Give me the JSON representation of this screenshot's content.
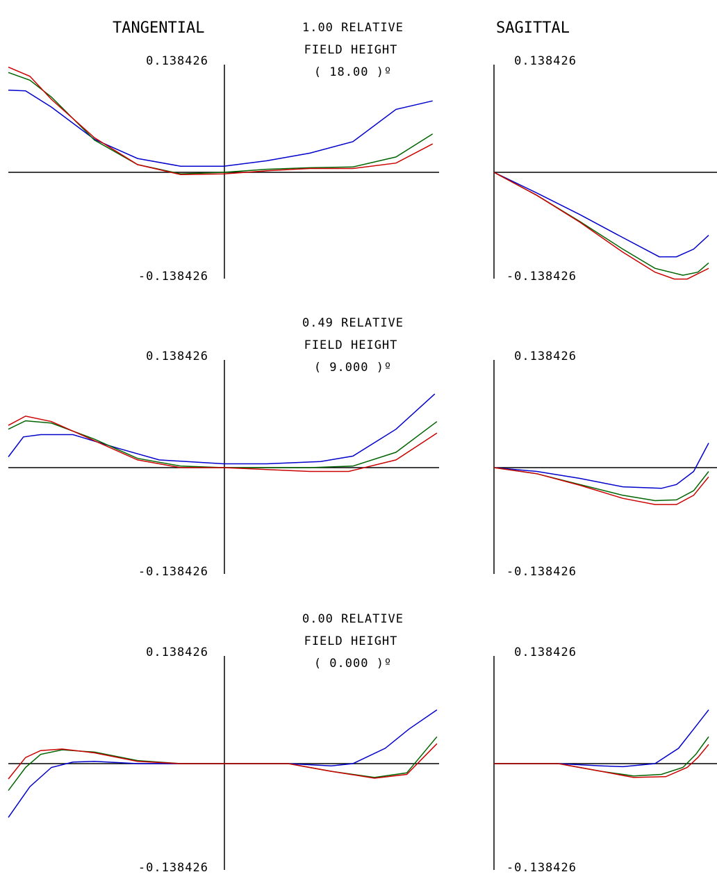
{
  "headers": {
    "tangential": "TANGENTIAL",
    "sagittal": "SAGITTAL"
  },
  "colors": {
    "blue": "#0000cc",
    "green": "#006400",
    "red": "#cc0000",
    "axis": "#000000"
  },
  "chart_data": [
    {
      "type": "line",
      "subplot": "tangential",
      "row": 0,
      "field_label": [
        "1.00  RELATIVE",
        "FIELD HEIGHT",
        "( 18.00 )º"
      ],
      "ylim_labels": [
        "0.138426",
        "-0.138426"
      ],
      "ylim": [
        -0.138426,
        0.138426
      ],
      "xlim": [
        -1,
        1
      ],
      "series": [
        {
          "color": "blue",
          "points": [
            [
              -1,
              0.107
            ],
            [
              -0.92,
              0.106
            ],
            [
              -0.8,
              0.085
            ],
            [
              -0.6,
              0.043
            ],
            [
              -0.4,
              0.018
            ],
            [
              -0.2,
              0.008
            ],
            [
              0,
              0.008
            ],
            [
              0.2,
              0.015
            ],
            [
              0.4,
              0.025
            ],
            [
              0.6,
              0.04
            ],
            [
              0.8,
              0.082
            ],
            [
              0.97,
              0.093
            ]
          ]
        },
        {
          "color": "green",
          "points": [
            [
              -1,
              0.13
            ],
            [
              -0.9,
              0.12
            ],
            [
              -0.8,
              0.098
            ],
            [
              -0.6,
              0.042
            ],
            [
              -0.4,
              0.01
            ],
            [
              -0.2,
              -0.002
            ],
            [
              0,
              0
            ],
            [
              0.2,
              0.004
            ],
            [
              0.4,
              0.006
            ],
            [
              0.6,
              0.007
            ],
            [
              0.8,
              0.02
            ],
            [
              0.97,
              0.05
            ]
          ]
        },
        {
          "color": "red",
          "points": [
            [
              -1,
              0.137
            ],
            [
              -0.9,
              0.125
            ],
            [
              -0.8,
              0.095
            ],
            [
              -0.6,
              0.045
            ],
            [
              -0.4,
              0.01
            ],
            [
              -0.2,
              -0.003
            ],
            [
              0,
              -0.002
            ],
            [
              0.2,
              0.002
            ],
            [
              0.4,
              0.005
            ],
            [
              0.6,
              0.005
            ],
            [
              0.8,
              0.012
            ],
            [
              0.97,
              0.037
            ]
          ]
        }
      ]
    },
    {
      "type": "line",
      "subplot": "sagittal",
      "row": 0,
      "ylim_labels": [
        "0.138426",
        "-0.138426"
      ],
      "ylim": [
        -0.138426,
        0.138426
      ],
      "xlim": [
        0,
        1
      ],
      "series": [
        {
          "color": "blue",
          "points": [
            [
              0,
              0
            ],
            [
              0.2,
              -0.027
            ],
            [
              0.4,
              -0.055
            ],
            [
              0.6,
              -0.085
            ],
            [
              0.77,
              -0.11
            ],
            [
              0.85,
              -0.11
            ],
            [
              0.93,
              -0.1
            ],
            [
              1,
              -0.082
            ]
          ]
        },
        {
          "color": "green",
          "points": [
            [
              0,
              0
            ],
            [
              0.2,
              -0.03
            ],
            [
              0.4,
              -0.064
            ],
            [
              0.6,
              -0.1
            ],
            [
              0.75,
              -0.125
            ],
            [
              0.88,
              -0.134
            ],
            [
              0.95,
              -0.13
            ],
            [
              1,
              -0.118
            ]
          ]
        },
        {
          "color": "red",
          "points": [
            [
              0,
              0
            ],
            [
              0.2,
              -0.03
            ],
            [
              0.4,
              -0.065
            ],
            [
              0.6,
              -0.104
            ],
            [
              0.75,
              -0.13
            ],
            [
              0.84,
              -0.139
            ],
            [
              0.9,
              -0.139
            ],
            [
              1,
              -0.125
            ]
          ]
        }
      ]
    },
    {
      "type": "line",
      "subplot": "tangential",
      "row": 1,
      "field_label": [
        "0.49  RELATIVE",
        "FIELD HEIGHT",
        "( 9.000 )º"
      ],
      "ylim_labels": [
        "0.138426",
        "-0.138426"
      ],
      "ylim": [
        -0.138426,
        0.138426
      ],
      "xlim": [
        -1,
        1
      ],
      "series": [
        {
          "color": "blue",
          "points": [
            [
              -1,
              0.014
            ],
            [
              -0.93,
              0.04
            ],
            [
              -0.85,
              0.043
            ],
            [
              -0.7,
              0.043
            ],
            [
              -0.5,
              0.026
            ],
            [
              -0.3,
              0.01
            ],
            [
              0,
              0.005
            ],
            [
              0.2,
              0.005
            ],
            [
              0.45,
              0.008
            ],
            [
              0.6,
              0.015
            ],
            [
              0.8,
              0.05
            ],
            [
              0.98,
              0.096
            ]
          ]
        },
        {
          "color": "green",
          "points": [
            [
              -1,
              0.05
            ],
            [
              -0.92,
              0.061
            ],
            [
              -0.8,
              0.058
            ],
            [
              -0.6,
              0.037
            ],
            [
              -0.4,
              0.012
            ],
            [
              -0.2,
              0.002
            ],
            [
              0,
              0
            ],
            [
              0.4,
              0
            ],
            [
              0.6,
              0.002
            ],
            [
              0.8,
              0.02
            ],
            [
              0.99,
              0.06
            ]
          ]
        },
        {
          "color": "red",
          "points": [
            [
              -1,
              0.055
            ],
            [
              -0.92,
              0.067
            ],
            [
              -0.8,
              0.06
            ],
            [
              -0.6,
              0.035
            ],
            [
              -0.4,
              0.01
            ],
            [
              -0.2,
              0
            ],
            [
              0,
              0
            ],
            [
              0.4,
              -0.005
            ],
            [
              0.58,
              -0.005
            ],
            [
              0.8,
              0.01
            ],
            [
              0.99,
              0.045
            ]
          ]
        }
      ]
    },
    {
      "type": "line",
      "subplot": "sagittal",
      "row": 1,
      "ylim_labels": [
        "0.138426",
        "-0.138426"
      ],
      "ylim": [
        -0.138426,
        0.138426
      ],
      "xlim": [
        0,
        1
      ],
      "series": [
        {
          "color": "blue",
          "points": [
            [
              0,
              0
            ],
            [
              0.2,
              -0.005
            ],
            [
              0.4,
              -0.014
            ],
            [
              0.6,
              -0.025
            ],
            [
              0.78,
              -0.027
            ],
            [
              0.85,
              -0.022
            ],
            [
              0.93,
              -0.005
            ],
            [
              1,
              0.032
            ]
          ]
        },
        {
          "color": "green",
          "points": [
            [
              0,
              0
            ],
            [
              0.2,
              -0.008
            ],
            [
              0.4,
              -0.022
            ],
            [
              0.6,
              -0.036
            ],
            [
              0.75,
              -0.043
            ],
            [
              0.85,
              -0.042
            ],
            [
              0.93,
              -0.03
            ],
            [
              1,
              -0.005
            ]
          ]
        },
        {
          "color": "red",
          "points": [
            [
              0,
              0
            ],
            [
              0.2,
              -0.008
            ],
            [
              0.4,
              -0.023
            ],
            [
              0.6,
              -0.04
            ],
            [
              0.75,
              -0.048
            ],
            [
              0.85,
              -0.048
            ],
            [
              0.93,
              -0.036
            ],
            [
              1,
              -0.012
            ]
          ]
        }
      ]
    },
    {
      "type": "line",
      "subplot": "tangential",
      "row": 2,
      "field_label": [
        "0.00  RELATIVE",
        "FIELD HEIGHT",
        "( 0.000 )º"
      ],
      "ylim_labels": [
        "0.138426",
        "-0.138426"
      ],
      "ylim": [
        -0.138426,
        0.138426
      ],
      "xlim": [
        -1,
        1
      ],
      "series": [
        {
          "color": "blue",
          "points": [
            [
              -1,
              -0.07
            ],
            [
              -0.9,
              -0.03
            ],
            [
              -0.8,
              -0.005
            ],
            [
              -0.7,
              0.002
            ],
            [
              -0.6,
              0.003
            ],
            [
              -0.4,
              0
            ],
            [
              0,
              0
            ],
            [
              0.3,
              0
            ],
            [
              0.5,
              -0.003
            ],
            [
              0.6,
              0
            ],
            [
              0.75,
              0.02
            ],
            [
              0.86,
              0.045
            ],
            [
              0.99,
              0.07
            ]
          ]
        },
        {
          "color": "green",
          "points": [
            [
              -1,
              -0.035
            ],
            [
              -0.92,
              -0.005
            ],
            [
              -0.85,
              0.012
            ],
            [
              -0.75,
              0.018
            ],
            [
              -0.6,
              0.015
            ],
            [
              -0.4,
              0.004
            ],
            [
              -0.2,
              0
            ],
            [
              0,
              0
            ],
            [
              0.3,
              0
            ],
            [
              0.5,
              -0.01
            ],
            [
              0.7,
              -0.018
            ],
            [
              0.85,
              -0.012
            ],
            [
              0.99,
              0.035
            ]
          ]
        },
        {
          "color": "red",
          "points": [
            [
              -1,
              -0.02
            ],
            [
              -0.92,
              0.008
            ],
            [
              -0.85,
              0.017
            ],
            [
              -0.75,
              0.019
            ],
            [
              -0.6,
              0.014
            ],
            [
              -0.4,
              0.003
            ],
            [
              -0.2,
              0
            ],
            [
              0,
              0
            ],
            [
              0.3,
              0
            ],
            [
              0.5,
              -0.01
            ],
            [
              0.7,
              -0.019
            ],
            [
              0.85,
              -0.014
            ],
            [
              0.99,
              0.026
            ]
          ]
        }
      ]
    },
    {
      "type": "line",
      "subplot": "sagittal",
      "row": 2,
      "ylim_labels": [
        "0.138426",
        "-0.138426"
      ],
      "ylim": [
        -0.138426,
        0.138426
      ],
      "xlim": [
        0,
        1
      ],
      "series": [
        {
          "color": "blue",
          "points": [
            [
              0,
              0
            ],
            [
              0.3,
              0
            ],
            [
              0.5,
              -0.003
            ],
            [
              0.6,
              -0.004
            ],
            [
              0.75,
              0
            ],
            [
              0.86,
              0.02
            ],
            [
              0.93,
              0.045
            ],
            [
              1,
              0.07
            ]
          ]
        },
        {
          "color": "green",
          "points": [
            [
              0,
              0
            ],
            [
              0.3,
              0
            ],
            [
              0.5,
              -0.01
            ],
            [
              0.65,
              -0.016
            ],
            [
              0.78,
              -0.014
            ],
            [
              0.88,
              -0.005
            ],
            [
              0.94,
              0.012
            ],
            [
              1,
              0.035
            ]
          ]
        },
        {
          "color": "red",
          "points": [
            [
              0,
              0
            ],
            [
              0.3,
              0
            ],
            [
              0.5,
              -0.01
            ],
            [
              0.65,
              -0.018
            ],
            [
              0.8,
              -0.017
            ],
            [
              0.9,
              -0.005
            ],
            [
              0.95,
              0.008
            ],
            [
              1,
              0.025
            ]
          ]
        }
      ]
    }
  ]
}
